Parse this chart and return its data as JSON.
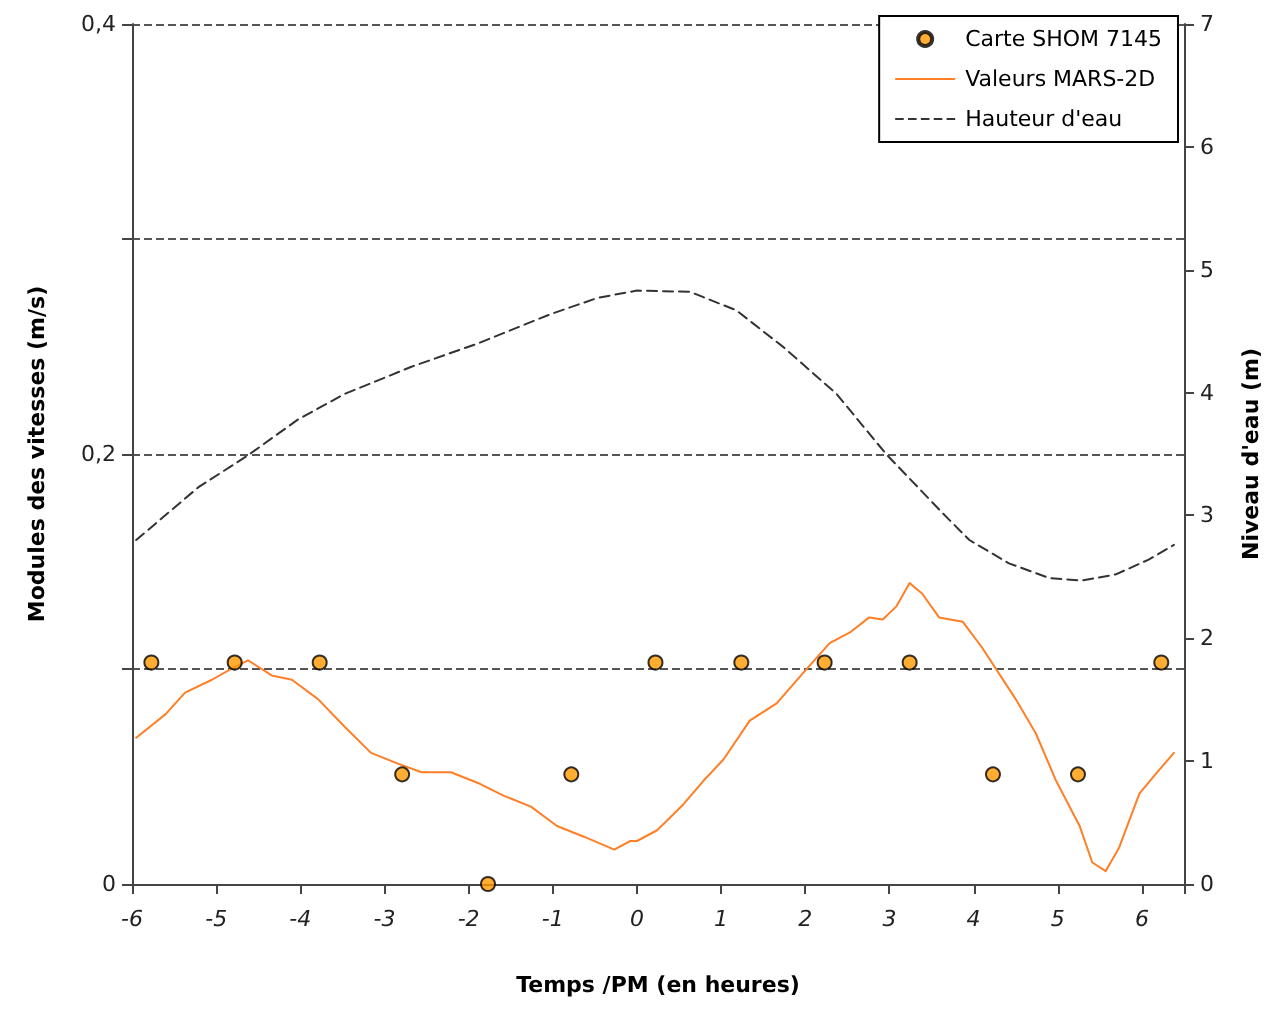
{
  "chart_data": {
    "type": "line",
    "xlabel": "Temps /PM (en heures)",
    "ylabel": "Modules des vitesses (m/s)",
    "y2label": "Niveau d'eau (m)",
    "xlim": [
      -6,
      6.5
    ],
    "xticks": [
      -6,
      -5,
      -4,
      -3,
      -2,
      -1,
      0,
      1,
      2,
      3,
      4,
      5,
      6
    ],
    "ylim": [
      0,
      0.4
    ],
    "yticks": [
      {
        "value": 0,
        "label": "0"
      },
      {
        "value": 0.1,
        "label": null
      },
      {
        "value": 0.2,
        "label": "0,2"
      },
      {
        "value": 0.3,
        "label": null
      },
      {
        "value": 0.4,
        "label": "0,4"
      }
    ],
    "y2lim": [
      0,
      7
    ],
    "y2ticks": [
      0,
      1,
      2,
      3,
      4,
      5,
      6,
      7
    ],
    "grid": "y",
    "legend": "top right",
    "series": [
      {
        "name": "Carte SHOM 7145",
        "type": "scatter",
        "marker": "circle",
        "color": "#ff9900",
        "x": [
          -5.77,
          -4.78,
          -3.77,
          -2.79,
          -1.77,
          -0.78,
          0.22,
          1.24,
          2.23,
          3.24,
          4.23,
          5.24,
          6.23
        ],
        "values": [
          0.103,
          0.103,
          0.103,
          0.051,
          0,
          0.051,
          0.103,
          0.103,
          0.103,
          0.103,
          0.051,
          0.051,
          0.103
        ]
      },
      {
        "name": "Valeurs MARS-2D",
        "marker": "none",
        "line_style": "solid",
        "color": "#ff7f27",
        "x": [
          -5.95,
          -5.6,
          -5.37,
          -5.05,
          -4.78,
          -4.62,
          -4.34,
          -4.1,
          -3.79,
          -3.47,
          -3.16,
          -2.84,
          -2.56,
          -2.21,
          -1.89,
          -1.58,
          -1.26,
          -0.95,
          -0.63,
          -0.27,
          -0.08,
          0,
          0.24,
          0.55,
          0.79,
          1.03,
          1.34,
          1.66,
          1.97,
          2.29,
          2.53,
          2.76,
          2.92,
          3.08,
          3.24,
          3.39,
          3.59,
          3.87,
          4.1,
          4.5,
          4.74,
          4.98,
          5.26,
          5.41,
          5.57,
          5.73,
          5.97,
          6.16,
          6.38
        ],
        "values": [
          0.068,
          0.079,
          0.089,
          0.095,
          0.101,
          0.104,
          0.097,
          0.095,
          0.086,
          0.073,
          0.061,
          0.056,
          0.052,
          0.052,
          0.047,
          0.041,
          0.036,
          0.027,
          0.022,
          0.016,
          0.02,
          0.02,
          0.025,
          0.037,
          0.048,
          0.058,
          0.076,
          0.084,
          0.098,
          0.112,
          0.117,
          0.124,
          0.123,
          0.129,
          0.14,
          0.135,
          0.124,
          0.122,
          0.11,
          0.086,
          0.07,
          0.048,
          0.027,
          0.01,
          0.006,
          0.017,
          0.042,
          0.051,
          0.061
        ]
      },
      {
        "name": "Hauteur d'eau",
        "marker": "none",
        "line_style": "dashed",
        "axis": "y2",
        "color": "#333333",
        "x": [
          -5.95,
          -5.21,
          -4.62,
          -4.03,
          -3.47,
          -2.68,
          -1.89,
          -1.02,
          -0.47,
          -0.08,
          0,
          0.63,
          1.18,
          1.74,
          2.37,
          2.96,
          3.63,
          3.95,
          4.42,
          4.9,
          5.29,
          5.69,
          6.08,
          6.38
        ],
        "values": [
          2.8,
          3.23,
          3.49,
          3.78,
          3.99,
          4.21,
          4.4,
          4.64,
          4.77,
          4.82,
          4.83,
          4.82,
          4.67,
          4.37,
          3.99,
          3.5,
          3.02,
          2.8,
          2.61,
          2.49,
          2.47,
          2.52,
          2.64,
          2.76
        ]
      }
    ]
  }
}
